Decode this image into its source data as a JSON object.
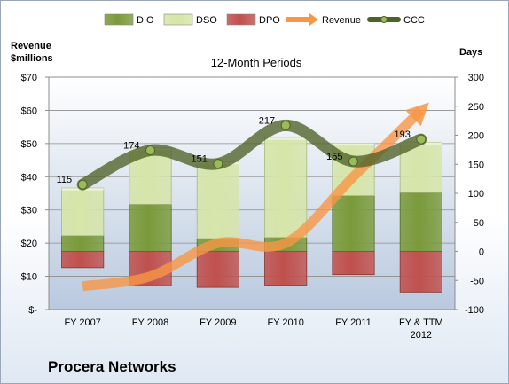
{
  "chart_data": {
    "type": "bar",
    "title": "12-Month Periods",
    "company": "Procera Networks",
    "y_left_label": [
      "Revenue",
      "$millions"
    ],
    "y_right_label": "Days",
    "categories": [
      "FY 2007",
      "FY 2008",
      "FY 2009",
      "FY 2010",
      "FY 2011",
      "FY & TTM 2012"
    ],
    "y_left": {
      "min": 0,
      "max": 70,
      "step": 10,
      "tick_labels": [
        "$-",
        "$10",
        "$20",
        "$30",
        "$40",
        "$50",
        "$60",
        "$70"
      ]
    },
    "y_right": {
      "min": -100,
      "max": 300,
      "step": 50
    },
    "legend": [
      "DIO",
      "DSO",
      "DPO",
      "Revenue",
      "CCC"
    ],
    "legend_position": "top",
    "grid": true,
    "series": [
      {
        "name": "DIO",
        "unit": "days",
        "values": [
          27,
          81,
          22,
          24,
          96,
          101
        ],
        "color": "#7a9a3a"
      },
      {
        "name": "DSO",
        "unit": "days",
        "values": [
          82,
          97,
          132,
          172,
          90,
          87
        ],
        "color": "#d6e5a8"
      },
      {
        "name": "DPO",
        "unit": "days",
        "values": [
          -28,
          -59,
          -62,
          -58,
          -40,
          -70
        ],
        "color": "#c0504d"
      },
      {
        "name": "Revenue",
        "unit": "$millions",
        "values": [
          7,
          10,
          20,
          20,
          40,
          60
        ],
        "color": "#f79646"
      },
      {
        "name": "CCC",
        "unit": "days",
        "values": [
          115,
          174,
          151,
          217,
          155,
          193
        ],
        "color": "#4f6228"
      }
    ],
    "data_labels": [
      "115",
      "174",
      "151",
      "217",
      "155",
      "193"
    ]
  }
}
